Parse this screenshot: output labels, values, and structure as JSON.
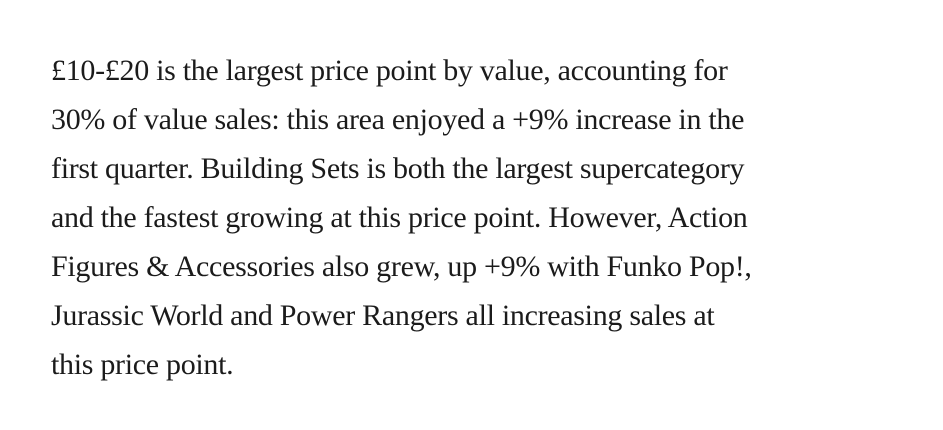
{
  "paragraph": {
    "lines": [
      "£10-£20 is the largest price point by value, accounting for",
      "30% of value sales: this area enjoyed a +9% increase in the",
      "first quarter. Building Sets is both the largest supercategory",
      "and the fastest growing at this price point. However, Action",
      "Figures & Accessories also grew, up +9% with Funko Pop!,",
      "Jurassic World and Power Rangers all increasing sales at",
      "this price point."
    ]
  }
}
